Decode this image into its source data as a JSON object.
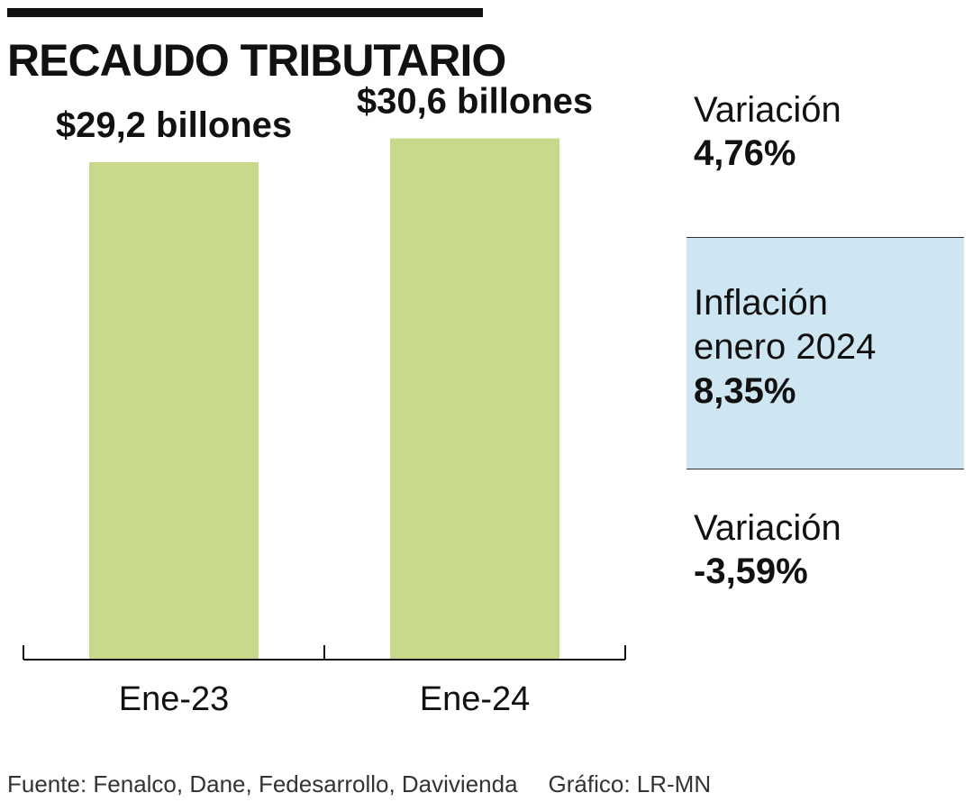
{
  "title": "RECAUDO TRIBUTARIO",
  "chart_data": {
    "type": "bar",
    "categories": [
      "Ene-23",
      "Ene-24"
    ],
    "values": [
      29.2,
      30.6
    ],
    "data_labels": [
      "$29,2 billones",
      "$30,6 billones"
    ],
    "ylim": [
      0,
      36.5
    ],
    "grid": false,
    "bar_color": "#c8d98a"
  },
  "side_top": {
    "label": "Variación",
    "value": "4,76%"
  },
  "inflation_panel": {
    "label_line1": "Inflación",
    "label_line2": "enero 2024",
    "value": "8,35%",
    "color": "#cde6f1"
  },
  "side_bottom": {
    "label": "Variación",
    "value": "-3,59%"
  },
  "footer": {
    "source": "Fuente: Fenalco, Dane, Fedesarrollo, Davivienda",
    "credit": "Gráfico: LR-MN"
  }
}
